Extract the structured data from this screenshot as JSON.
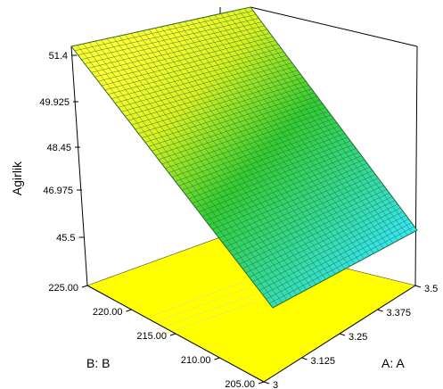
{
  "chart_data": {
    "type": "surface-3d",
    "zlabel": "Agirlik",
    "xlabel": "A: A",
    "ylabel": "B: B",
    "x_ticks": [
      "3",
      "3.125",
      "3.25",
      "3.375",
      "3.5"
    ],
    "y_ticks": [
      "205.00",
      "210.00",
      "215.00",
      "220.00",
      "225.00"
    ],
    "z_ticks": [
      "45.5",
      "46.975",
      "48.45",
      "49.925",
      "51.4"
    ],
    "xlim": [
      3,
      3.5
    ],
    "ylim": [
      205,
      225
    ],
    "zlim": [
      44.7,
      51.4
    ],
    "surface_corners": [
      {
        "a": 3,
        "b": 205,
        "z": 51.4
      },
      {
        "a": 3,
        "b": 225,
        "z": 51.4
      },
      {
        "a": 3.5,
        "b": 225,
        "z": 45.5
      },
      {
        "a": 3.5,
        "b": 205,
        "z": 44.7
      }
    ],
    "colors": {
      "floor": "#ffff00",
      "high": "#ffff33",
      "mid": "#33cc33",
      "low": "#33e6ff",
      "mesh": "#2a6a2a",
      "frame": "#000000"
    }
  }
}
